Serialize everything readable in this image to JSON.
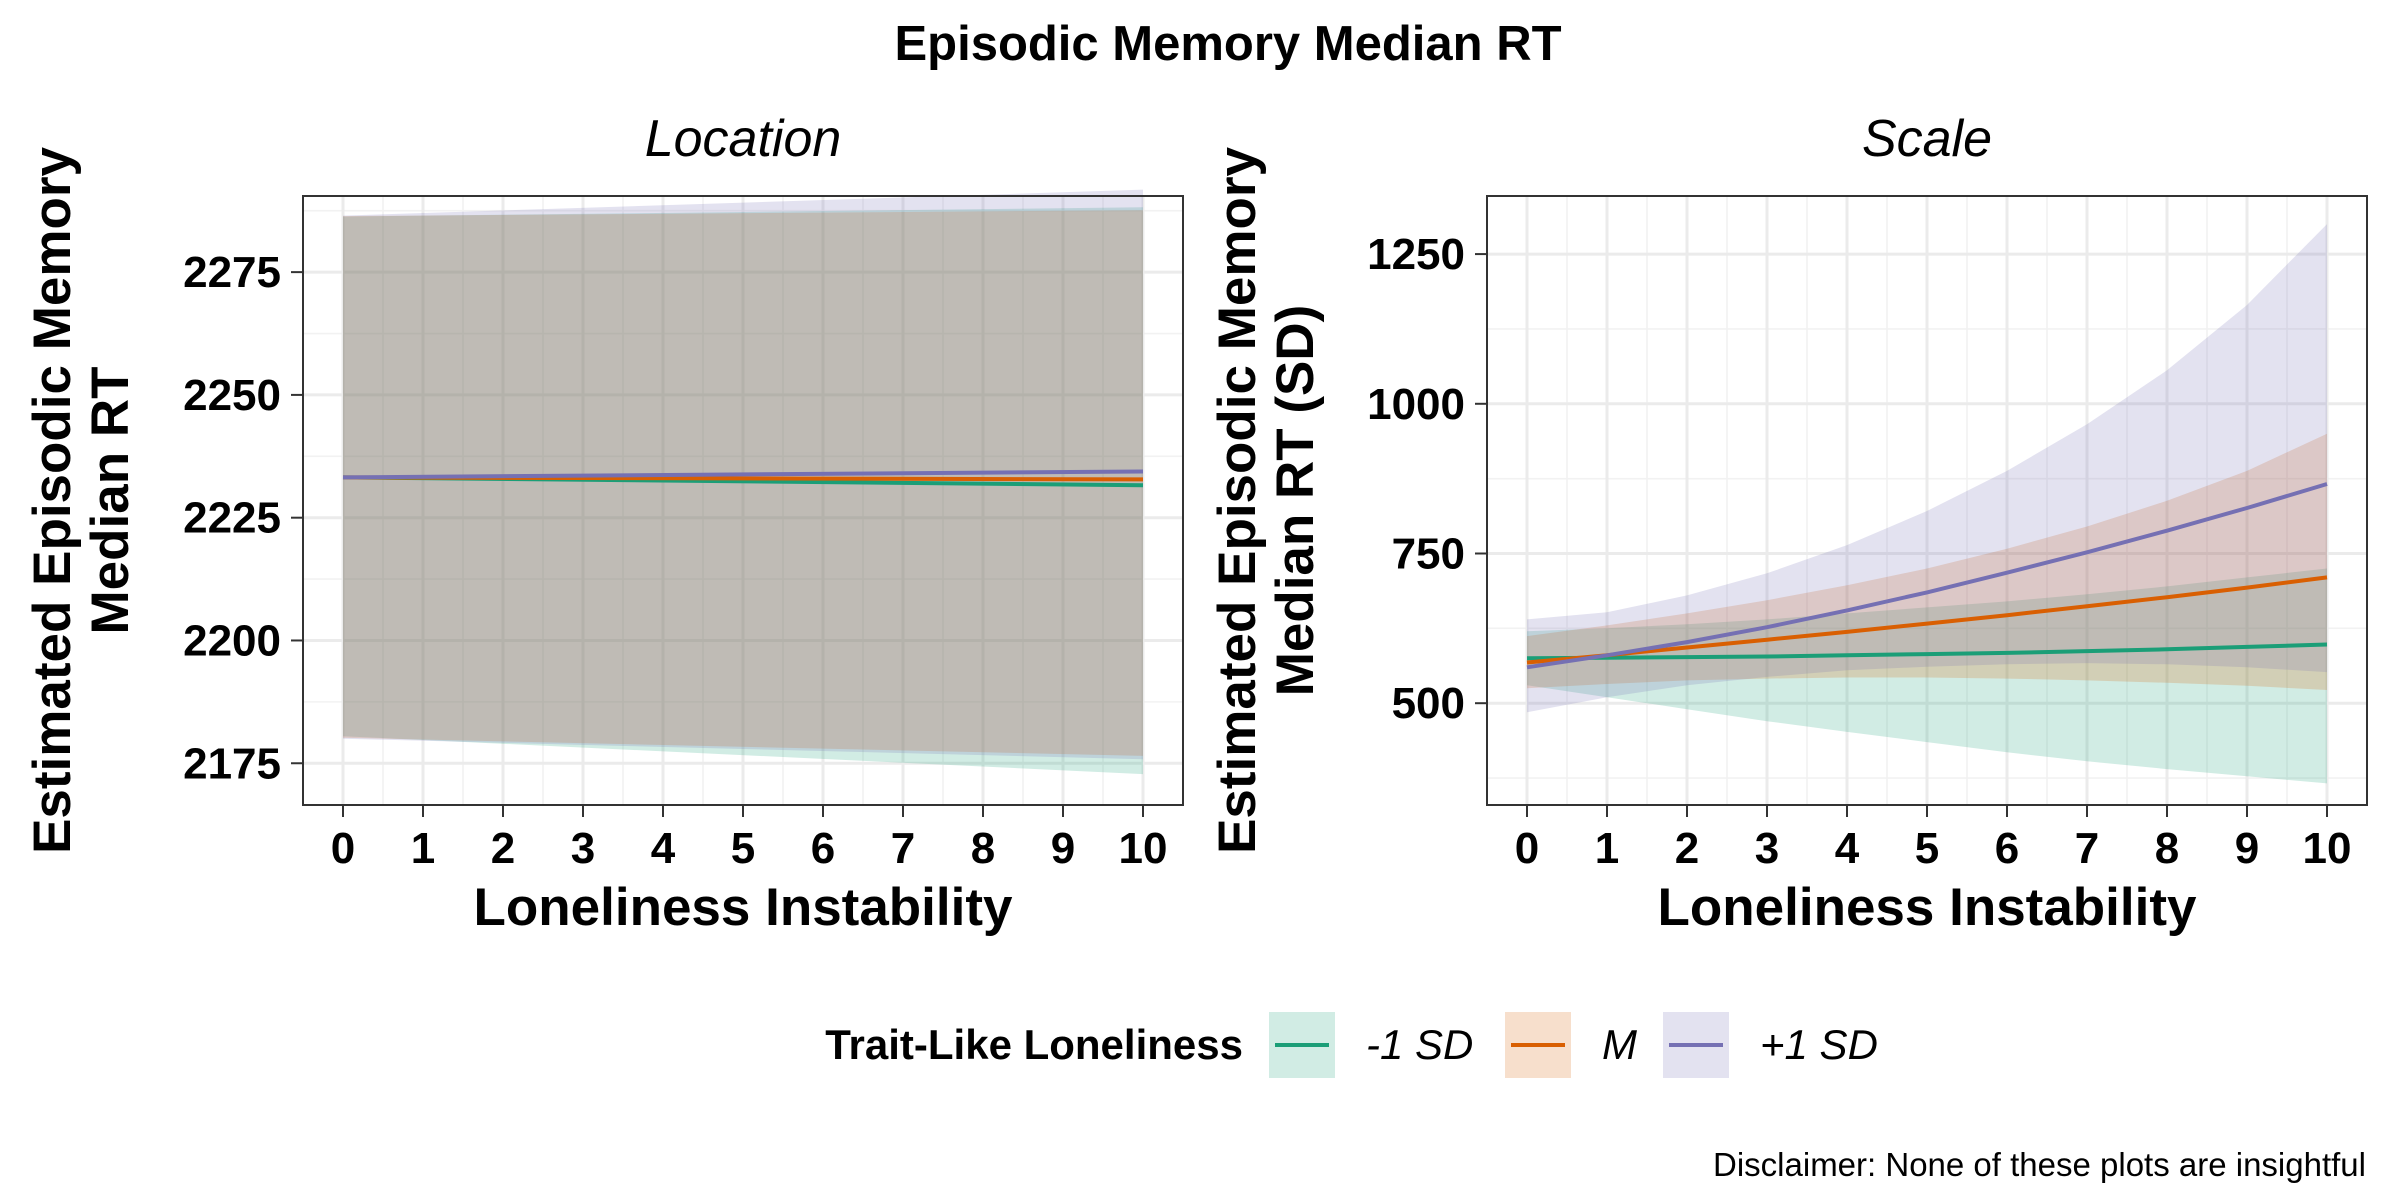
{
  "chart_data": {
    "title": "Episodic Memory Median RT",
    "caption": "Disclaimer: None of these plots are insightful",
    "legend": {
      "title": "Trait-Like Loneliness",
      "position": "bottom",
      "entries": [
        {
          "label": "-1 SD",
          "line_color": "#1B9E77",
          "fill_color": "#D4EFE4"
        },
        {
          "label": "M",
          "line_color": "#D95F02",
          "fill_color": "#FADDCF"
        },
        {
          "label": "+1 SD",
          "line_color": "#7570B3",
          "fill_color": "#E0E3F1"
        }
      ]
    },
    "panels": [
      {
        "type": "line",
        "strip_label": "Location",
        "xlabel": "Loneliness Instability",
        "ylabel_lines": [
          "Estimated Episodic Memory",
          "Median RT"
        ],
        "x_ticks": [
          0,
          1,
          2,
          3,
          4,
          5,
          6,
          7,
          8,
          9,
          10
        ],
        "y_ticks": [
          2175,
          2200,
          2225,
          2250,
          2275
        ],
        "xlim": [
          -0.5,
          10.5
        ],
        "ylim": [
          2166.5,
          2290.5
        ],
        "grid": true,
        "x": [
          0,
          10
        ],
        "series": [
          {
            "name": "-1 SD",
            "values": [
              2233.2,
              2231.6
            ],
            "lower": [
              2180.5,
              2172.8
            ],
            "upper": [
              2286.3,
              2288.2
            ]
          },
          {
            "name": "M",
            "values": [
              2233.2,
              2232.8
            ],
            "lower": [
              2180.2,
              2176.5
            ],
            "upper": [
              2286.4,
              2287.6
            ]
          },
          {
            "name": "+1 SD",
            "values": [
              2233.2,
              2234.4
            ],
            "lower": [
              2180.0,
              2175.8
            ],
            "upper": [
              2286.5,
              2291.8
            ]
          }
        ]
      },
      {
        "type": "line",
        "strip_label": "Scale",
        "xlabel": "Loneliness Instability",
        "ylabel_lines": [
          "Estimated Episodic Memory",
          "Median RT (SD)"
        ],
        "x_ticks": [
          0,
          1,
          2,
          3,
          4,
          5,
          6,
          7,
          8,
          9,
          10
        ],
        "y_ticks": [
          500,
          750,
          1000,
          1250
        ],
        "xlim": [
          -0.5,
          10.5
        ],
        "ylim": [
          330,
          1347
        ],
        "grid": true,
        "x": [
          0,
          1,
          2,
          3,
          4,
          5,
          6,
          7,
          8,
          9,
          10
        ],
        "series": [
          {
            "name": "-1 SD",
            "values": [
              575,
              576,
              577,
              578,
              580,
              582,
              584,
              587,
              590,
              594,
              598
            ],
            "lower": [
              530,
              510,
              490,
              470,
              452,
              435,
              418,
              403,
              390,
              378,
              366
            ],
            "upper": [
              620,
              625,
              632,
              640,
              650,
              660,
              670,
              682,
              695,
              710,
              725
            ]
          },
          {
            "name": "M",
            "values": [
              568,
              580,
              593,
              606,
              619,
              633,
              647,
              662,
              677,
              693,
              710
            ],
            "lower": [
              525,
              532,
              538,
              541,
              543,
              543,
              541,
              538,
              534,
              529,
              522
            ],
            "upper": [
              612,
              630,
              650,
              672,
              697,
              725,
              758,
              795,
              838,
              888,
              950
            ]
          },
          {
            "name": "+1 SD",
            "values": [
              560,
              580,
              602,
              627,
              655,
              685,
              718,
              752,
              788,
              826,
              866
            ],
            "lower": [
              485,
              510,
              530,
              544,
              555,
              561,
              565,
              567,
              565,
              560,
              552
            ],
            "upper": [
              640,
              652,
              680,
              717,
              764,
              821,
              888,
              966,
              1056,
              1165,
              1300
            ]
          }
        ]
      }
    ]
  }
}
